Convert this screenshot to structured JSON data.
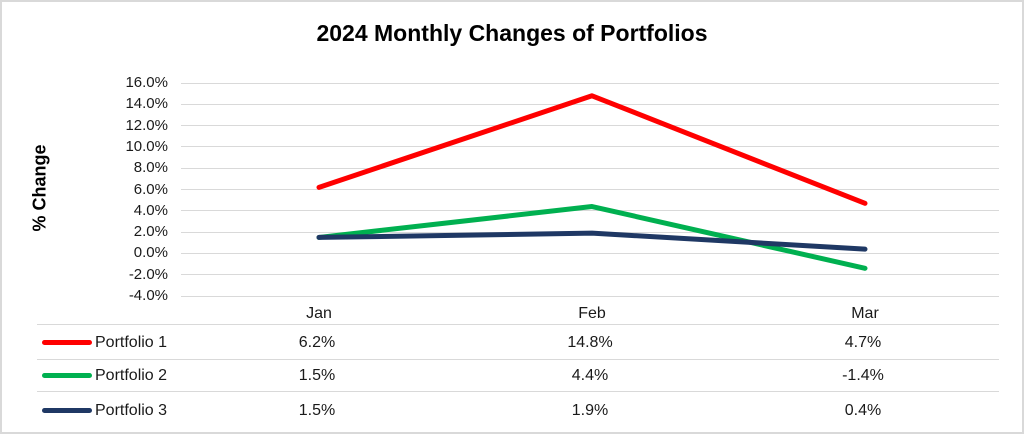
{
  "chart_data": {
    "type": "line",
    "title": "2024 Monthly Changes of Portfolios",
    "ylabel": "% Change",
    "xlabel": "",
    "categories": [
      "Jan",
      "Feb",
      "Mar"
    ],
    "series": [
      {
        "name": "Portfolio 1",
        "color": "#ff0000",
        "values": [
          6.2,
          14.8,
          4.7
        ],
        "display": [
          "6.2%",
          "14.8%",
          "4.7%"
        ]
      },
      {
        "name": "Portfolio 2",
        "color": "#00b050",
        "values": [
          1.5,
          4.4,
          -1.4
        ],
        "display": [
          "1.5%",
          "4.4%",
          "-1.4%"
        ]
      },
      {
        "name": "Portfolio 3",
        "color": "#1f3864",
        "values": [
          1.5,
          1.9,
          0.4
        ],
        "display": [
          "1.5%",
          "1.9%",
          "0.4%"
        ]
      }
    ],
    "y_axis": {
      "min": -4,
      "max": 16,
      "step": 2,
      "tick_labels": [
        "16.0%",
        "14.0%",
        "12.0%",
        "10.0%",
        "8.0%",
        "6.0%",
        "4.0%",
        "2.0%",
        "0.0%",
        "-2.0%",
        "-4.0%"
      ]
    },
    "grid": "horizontal",
    "legend_position": "bottom-left-table",
    "colors": {
      "gridline": "#d9d9d9",
      "divider": "#d9d9d9",
      "border": "#d9d9d9",
      "text": "#1a1a1a",
      "title": "#000000"
    }
  }
}
